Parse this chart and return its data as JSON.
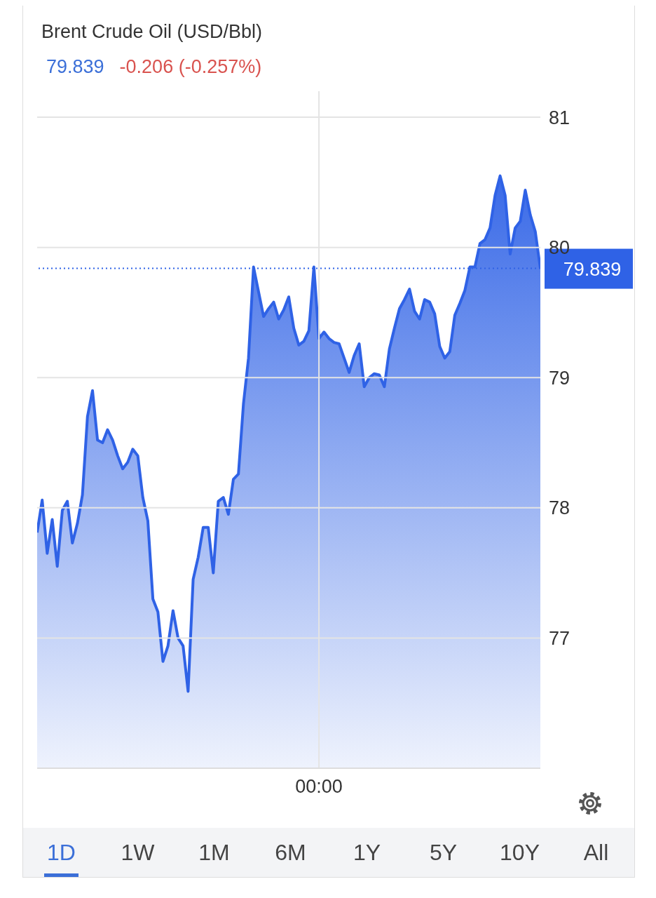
{
  "chart_data": {
    "type": "area",
    "title": "Brent Crude Oil (USD/Bbl)",
    "subtitle": "79.839",
    "annotations": [
      "-0.206 (-0.257%)",
      "1D",
      "1W",
      "1M",
      "6M",
      "1Y",
      "5Y",
      "10Y",
      "All"
    ],
    "categories": [
      null,
      null,
      null,
      null,
      null,
      null,
      null,
      null,
      null,
      null,
      null,
      null,
      null,
      null,
      null,
      null,
      null,
      null,
      null,
      null,
      null,
      null,
      null,
      null,
      null,
      null,
      null,
      null,
      null,
      null,
      null,
      null,
      null,
      null,
      null,
      null,
      null,
      null,
      null,
      null,
      null,
      null,
      null,
      null,
      null,
      null,
      null,
      null,
      null,
      null,
      null,
      null,
      null,
      null,
      null,
      null,
      "00:00",
      null,
      null,
      null,
      null,
      null,
      null,
      null,
      null,
      null,
      null,
      null,
      null,
      null,
      null,
      null,
      null,
      null,
      null,
      null,
      null,
      null,
      null,
      null,
      null,
      null,
      null,
      null,
      null,
      null,
      null,
      null,
      null,
      null,
      null,
      null,
      null,
      null,
      null,
      null,
      null,
      null,
      null,
      null,
      null
    ],
    "series": [
      {
        "color": "#2f62e6",
        "values": [
          77.81,
          78.06,
          77.65,
          77.91,
          77.55,
          77.98,
          78.05,
          77.73,
          77.88,
          78.1,
          78.7,
          78.9,
          78.52,
          78.5,
          78.6,
          78.52,
          78.4,
          78.3,
          78.35,
          78.45,
          78.4,
          78.08,
          77.9,
          77.3,
          77.2,
          76.82,
          76.94,
          77.21,
          77.0,
          76.94,
          76.59,
          77.45,
          77.62,
          77.85,
          77.85,
          77.5,
          78.05,
          78.08,
          77.95,
          78.22,
          78.26,
          78.8,
          79.15,
          79.85,
          79.66,
          79.47,
          79.53,
          79.58,
          79.45,
          79.52,
          79.62,
          79.38,
          79.25,
          79.28,
          79.36,
          79.85,
          79.3,
          79.35,
          79.3,
          79.27,
          79.26,
          79.15,
          79.04,
          79.17,
          79.26,
          78.93,
          79.0,
          79.03,
          79.02,
          78.93,
          79.22,
          79.38,
          79.53,
          79.6,
          79.68,
          79.51,
          79.45,
          79.6,
          79.58,
          79.49,
          79.24,
          79.15,
          79.2,
          79.48,
          79.57,
          79.67,
          79.85,
          79.85,
          80.03,
          80.06,
          80.15,
          80.4,
          80.55,
          80.4,
          79.95,
          80.15,
          80.2,
          80.44,
          80.25,
          80.12,
          79.839
        ]
      }
    ],
    "ylim": [
      76,
      81.2
    ],
    "yticks": [
      77,
      78,
      79,
      80,
      81
    ],
    "grid": true,
    "ref_lines": [
      {
        "axis": "y",
        "value": 79.839,
        "label": "79.839",
        "color": "#2f62e6",
        "line_style": "dotted"
      }
    ]
  }
}
